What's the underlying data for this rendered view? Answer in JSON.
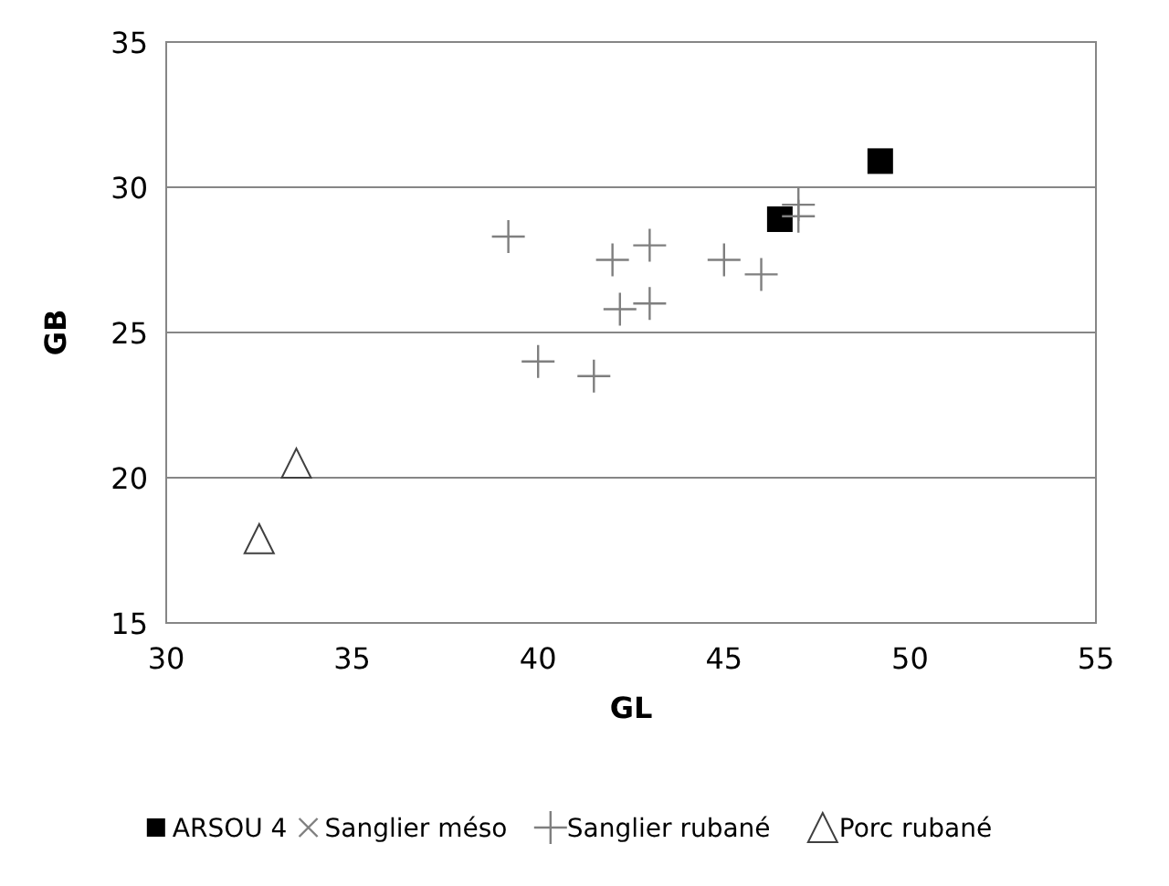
{
  "chart_data": {
    "type": "scatter",
    "xlabel": "GL",
    "ylabel": "GB",
    "xlim": [
      30,
      55
    ],
    "xticks": [
      30,
      35,
      40,
      45,
      50,
      55
    ],
    "ylim": [
      15,
      35
    ],
    "yticks": [
      15,
      20,
      25,
      30,
      35
    ],
    "grid": "y",
    "legend": "bottom",
    "series": [
      {
        "name": "ARSOU 4",
        "color": "#000000",
        "marker": "square",
        "x": [
          46.5,
          49.2
        ],
        "values": [
          28.9,
          30.9
        ]
      },
      {
        "name": "Sanglier méso",
        "color": "#7f7f7f",
        "marker": "cross"
      },
      {
        "name": "Sanglier rubané",
        "color": "#7f7f7f",
        "marker": "plus",
        "x": [
          39.2,
          40,
          41.5,
          42,
          42.2,
          43,
          43,
          45,
          46,
          47,
          47
        ],
        "values": [
          28.3,
          24,
          23.5,
          27.5,
          25.8,
          28,
          26,
          27.5,
          27,
          29.4,
          29
        ]
      },
      {
        "name": "Porc rubané",
        "color": "#404040",
        "marker": "triangle",
        "x": [
          32.5,
          33.5
        ],
        "values": [
          17.9,
          20.5
        ]
      }
    ]
  }
}
